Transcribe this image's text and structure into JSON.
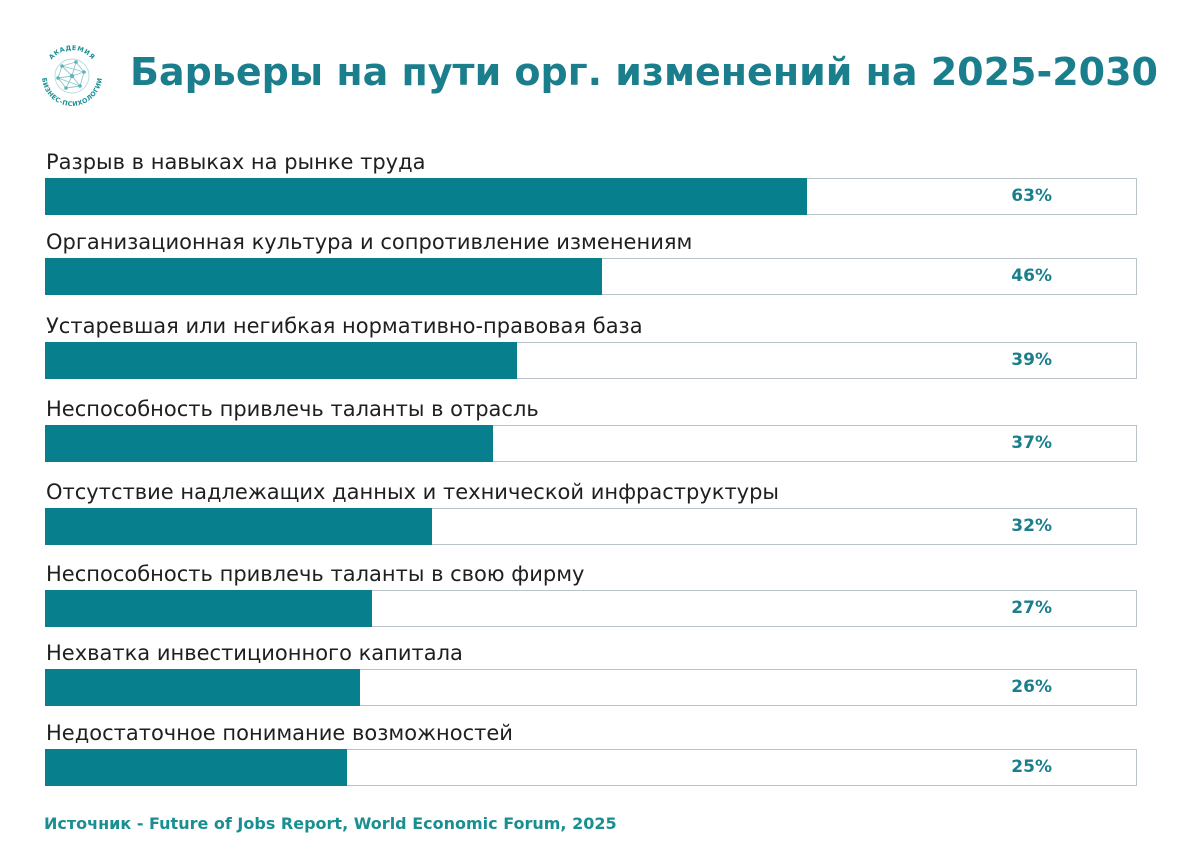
{
  "header": {
    "title": "Барьеры на пути орг. изменений на 2025-2030",
    "logo_text": "АКАДЕМИЯ БИЗНЕС-ПСИХОЛОГИИ"
  },
  "colors": {
    "accent": "#087f8c",
    "title": "#1a7e8c",
    "source": "#1a8f92",
    "track_border": "#b9c3c8"
  },
  "chart_data": {
    "type": "bar",
    "orientation": "horizontal",
    "title": "Барьеры на пути орг. изменений на 2025-2030",
    "xlim": [
      0,
      100
    ],
    "categories": [
      "Разрыв в навыках на рынке труда",
      "Организационная культура и сопротивление изменениям",
      "Устаревшая или негибкая нормативно-правовая база",
      "Неспособность привлечь таланты в отрасль",
      "Отсутствие надлежащих данных и технической инфраструктуры",
      "Неспособность привлечь таланты в свою фирму",
      "Нехватка инвестиционного капитала",
      "Недостаточное понимание возможностей"
    ],
    "values": [
      63,
      46,
      39,
      37,
      32,
      27,
      26,
      25
    ],
    "value_labels": [
      "63%",
      "46%",
      "39%",
      "37%",
      "32%",
      "27%",
      "26%",
      "25%"
    ]
  },
  "footer": {
    "source": "Источник - Future of Jobs Report, World Economic Forum, 2025"
  }
}
